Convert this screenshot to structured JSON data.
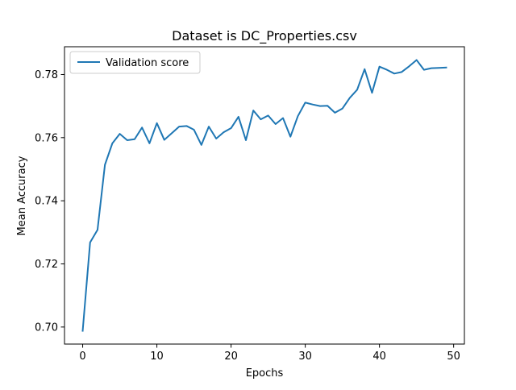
{
  "colors": {
    "series": "#1f77b4",
    "axes": "#000000",
    "legend_border": "#cccccc",
    "background": "#ffffff"
  },
  "chart_data": {
    "type": "line",
    "title": "Dataset is DC_Properties.csv",
    "xlabel": "Epochs",
    "ylabel": "Mean Accuracy",
    "xlim": [
      -2.45,
      51.45
    ],
    "ylim": [
      0.6946,
      0.7888
    ],
    "xticks": [
      0,
      10,
      20,
      30,
      40,
      50
    ],
    "xtick_labels": [
      "0",
      "10",
      "20",
      "30",
      "40",
      "50"
    ],
    "yticks": [
      0.7,
      0.72,
      0.74,
      0.76,
      0.78
    ],
    "ytick_labels": [
      "0.70",
      "0.72",
      "0.74",
      "0.76",
      "0.78"
    ],
    "grid": false,
    "legend_position": "top-left",
    "series": [
      {
        "name": "Validation score",
        "x": [
          0,
          1,
          2,
          3,
          4,
          5,
          6,
          7,
          8,
          9,
          10,
          11,
          12,
          13,
          14,
          15,
          16,
          17,
          18,
          19,
          20,
          21,
          22,
          23,
          24,
          25,
          26,
          27,
          28,
          29,
          30,
          31,
          32,
          33,
          34,
          35,
          36,
          37,
          38,
          39,
          40,
          41,
          42,
          43,
          44,
          45,
          46,
          47,
          48,
          49
        ],
        "values": [
          0.6988,
          0.7268,
          0.7308,
          0.7514,
          0.7582,
          0.7612,
          0.7592,
          0.7595,
          0.7632,
          0.7582,
          0.7646,
          0.7593,
          0.7614,
          0.7635,
          0.7637,
          0.7625,
          0.7577,
          0.7635,
          0.7597,
          0.7617,
          0.763,
          0.7666,
          0.7592,
          0.7686,
          0.7658,
          0.767,
          0.7643,
          0.7662,
          0.7603,
          0.7668,
          0.7711,
          0.7705,
          0.77,
          0.7701,
          0.7679,
          0.7692,
          0.7726,
          0.7752,
          0.7817,
          0.7742,
          0.7825,
          0.7815,
          0.7803,
          0.7808,
          0.7826,
          0.7846,
          0.7815,
          0.782,
          0.7821,
          0.7822
        ]
      }
    ]
  }
}
